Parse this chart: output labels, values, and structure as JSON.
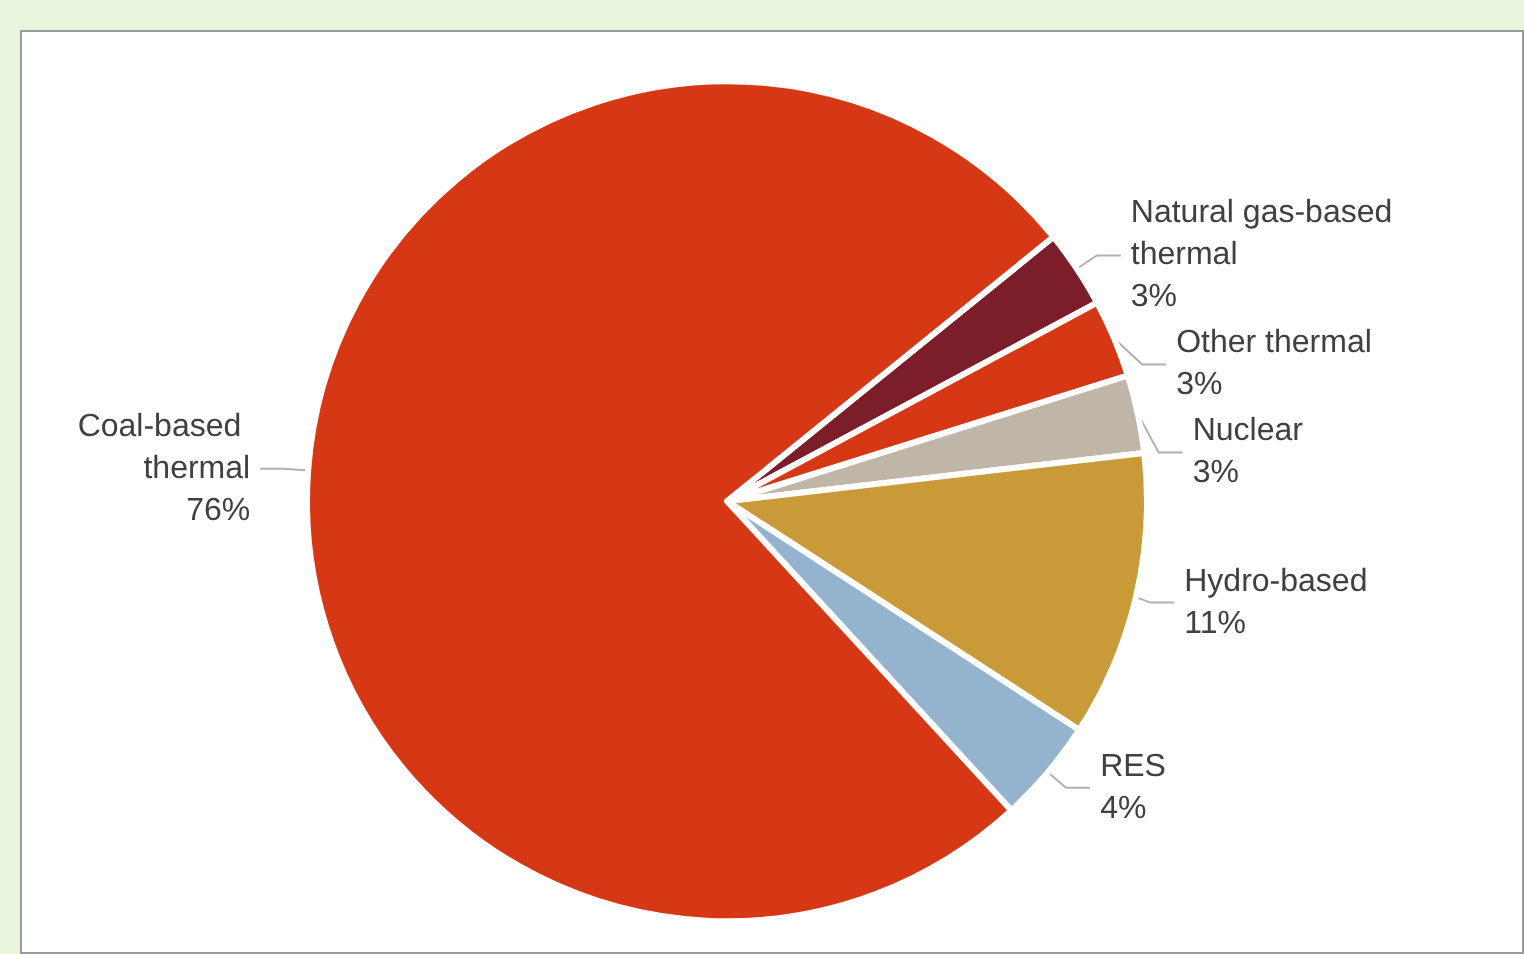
{
  "chart_data": {
    "type": "pie",
    "categories": [
      "Natural gas-based thermal",
      "Other thermal",
      "Nuclear",
      "Hydro-based",
      "RES",
      "Coal-based thermal"
    ],
    "values": [
      3,
      3,
      3,
      11,
      4,
      76
    ],
    "value_labels": [
      "3%",
      "3%",
      "3%",
      "11%",
      "4%",
      "76%"
    ],
    "colors": [
      "#7b1e2a",
      "#d63815",
      "#bfb6a8",
      "#c99a38",
      "#94b3cf",
      "#d63815"
    ],
    "legend": false
  }
}
